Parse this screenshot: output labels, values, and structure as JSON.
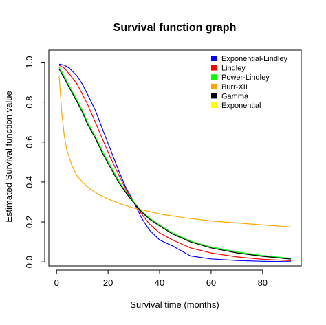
{
  "chart_data": {
    "type": "line",
    "title": "Survival function graph",
    "xlabel": "Survival time (months)",
    "ylabel": "Estimated Survival function value",
    "xlim": [
      -3,
      95
    ],
    "ylim": [
      -0.02,
      1.06
    ],
    "xticks": [
      0,
      20,
      40,
      60,
      80
    ],
    "yticks": [
      0.0,
      0.2,
      0.4,
      0.6,
      0.8,
      1.0
    ],
    "xtick_labels": [
      "0",
      "20",
      "40",
      "60",
      "80"
    ],
    "ytick_labels": [
      "0.0",
      "0.2",
      "0.4",
      "0.6",
      "0.8",
      "1.0"
    ],
    "legend_position": "top-right",
    "series": [
      {
        "name": "Exponential-Lindley",
        "color": "#0000ff",
        "x": [
          1,
          3,
          5,
          8,
          10,
          12,
          15,
          18,
          21,
          24,
          27,
          30,
          33,
          36,
          40,
          45,
          52,
          60,
          70,
          80,
          91
        ],
        "y": [
          0.99,
          0.985,
          0.97,
          0.93,
          0.89,
          0.84,
          0.76,
          0.66,
          0.56,
          0.46,
          0.37,
          0.3,
          0.22,
          0.16,
          0.11,
          0.08,
          0.03,
          0.015,
          0.007,
          0.003,
          0.001
        ]
      },
      {
        "name": "Lindley",
        "color": "#ff0000",
        "x": [
          1,
          3,
          5,
          8,
          10,
          12,
          15,
          18,
          21,
          24,
          27,
          30,
          33,
          36,
          40,
          45,
          52,
          60,
          70,
          80,
          91
        ],
        "y": [
          0.985,
          0.97,
          0.94,
          0.89,
          0.84,
          0.79,
          0.7,
          0.61,
          0.52,
          0.44,
          0.36,
          0.3,
          0.24,
          0.19,
          0.145,
          0.11,
          0.07,
          0.045,
          0.025,
          0.013,
          0.006
        ]
      },
      {
        "name": "Power-Lindley",
        "color": "#00ff00",
        "x": [
          1,
          3,
          5,
          8,
          10,
          12,
          15,
          18,
          21,
          24,
          27,
          30,
          33,
          36,
          40,
          45,
          52,
          60,
          70,
          80,
          91
        ],
        "y": [
          0.975,
          0.93,
          0.88,
          0.81,
          0.76,
          0.7,
          0.63,
          0.55,
          0.48,
          0.41,
          0.35,
          0.3,
          0.255,
          0.22,
          0.185,
          0.145,
          0.105,
          0.075,
          0.05,
          0.032,
          0.018
        ]
      },
      {
        "name": "Burr-XII",
        "color": "#ffa500",
        "x": [
          1,
          2,
          3,
          4,
          6,
          8,
          10,
          13,
          16,
          20,
          25,
          30,
          35,
          40,
          50,
          60,
          70,
          80,
          91
        ],
        "y": [
          0.93,
          0.75,
          0.63,
          0.56,
          0.48,
          0.43,
          0.4,
          0.365,
          0.34,
          0.315,
          0.29,
          0.27,
          0.255,
          0.24,
          0.22,
          0.205,
          0.195,
          0.185,
          0.175
        ]
      },
      {
        "name": "Gamma",
        "color": "#000000",
        "x": [
          1,
          3,
          5,
          8,
          10,
          12,
          15,
          18,
          21,
          24,
          27,
          30,
          33,
          36,
          40,
          45,
          52,
          60,
          70,
          80,
          91
        ],
        "y": [
          0.965,
          0.92,
          0.87,
          0.8,
          0.75,
          0.69,
          0.62,
          0.54,
          0.47,
          0.4,
          0.345,
          0.295,
          0.25,
          0.215,
          0.18,
          0.14,
          0.1,
          0.07,
          0.045,
          0.028,
          0.014
        ]
      },
      {
        "name": "Exponential",
        "color": "#ffff00",
        "x": [],
        "y": []
      }
    ]
  }
}
